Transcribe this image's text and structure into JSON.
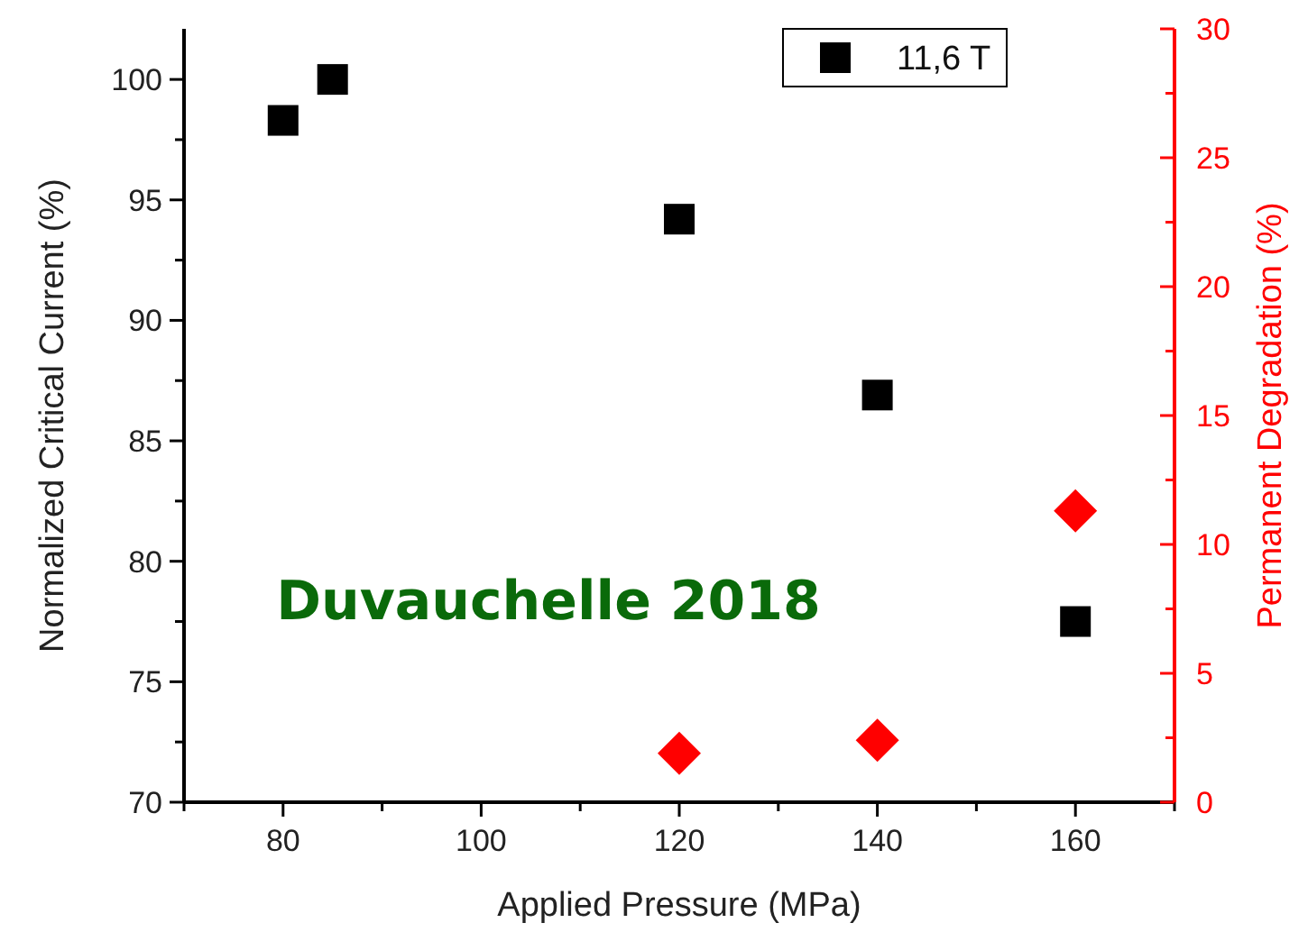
{
  "chart_data": {
    "type": "scatter",
    "xlabel": "Applied Pressure (MPa)",
    "ylabel": "Normalized Critical Current (%)",
    "y2label": "Permanent Degradation (%)",
    "annotations": [
      "Duvauchelle 2018"
    ],
    "xlim": [
      70,
      170
    ],
    "xticks": [
      {
        "value": 70,
        "label": null
      },
      80,
      {
        "value": 90,
        "label": null
      },
      100,
      {
        "value": 110,
        "label": null
      },
      120,
      {
        "value": 130,
        "label": null
      },
      140,
      {
        "value": 150,
        "label": null
      },
      160,
      {
        "value": 170,
        "label": null
      }
    ],
    "ylim": [
      70,
      102.1
    ],
    "yticks": [
      70,
      {
        "value": 72.5,
        "label": null
      },
      75,
      {
        "value": 77.5,
        "label": null
      },
      80,
      {
        "value": 82.5,
        "label": null
      },
      85,
      {
        "value": 87.5,
        "label": null
      },
      90,
      {
        "value": 92.5,
        "label": null
      },
      95,
      {
        "value": 97.5,
        "label": null
      },
      100
    ],
    "y2lim": [
      0,
      30
    ],
    "y2ticks": [
      0,
      {
        "value": 2.5,
        "label": null
      },
      5,
      {
        "value": 7.5,
        "label": null
      },
      10,
      {
        "value": 12.5,
        "label": null
      },
      15,
      {
        "value": 17.5,
        "label": null
      },
      20,
      {
        "value": 22.5,
        "label": null
      },
      25,
      {
        "value": 27.5,
        "label": null
      },
      30
    ],
    "legend": "top right",
    "grid": false,
    "series": [
      {
        "name": "11,6 T",
        "color": "#000000",
        "marker": "square",
        "x": [
          80,
          85,
          120,
          140,
          160
        ],
        "values": [
          98.3,
          100,
          94.2,
          86.9,
          77.5
        ]
      },
      {
        "color": "#ff0000",
        "marker": "diamond",
        "axis": "y2",
        "x": [
          120,
          140,
          160
        ],
        "values": [
          1.9,
          2.4,
          11.3
        ]
      }
    ]
  }
}
